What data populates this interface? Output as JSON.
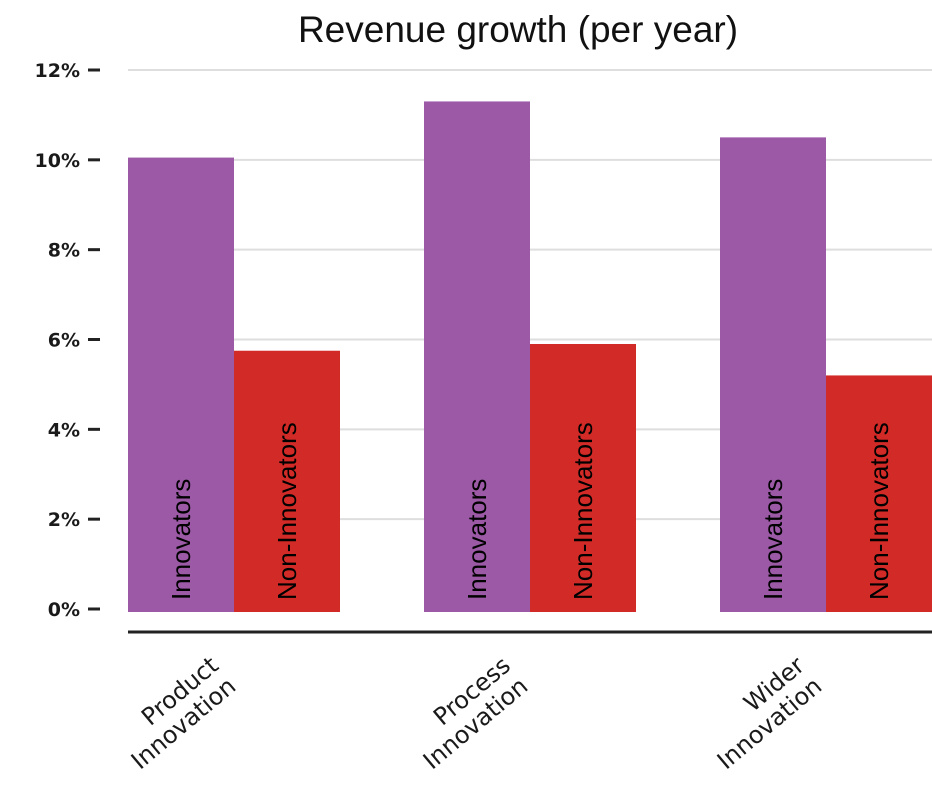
{
  "chart_data": {
    "type": "bar",
    "title": "Revenue growth (per year)",
    "xlabel": "",
    "ylabel": "",
    "categories": [
      [
        "Product",
        "Innovation"
      ],
      [
        "Process",
        "Innovation"
      ],
      [
        "Wider",
        "Innovation"
      ]
    ],
    "series": [
      {
        "name": "Innovators",
        "color": "#9b59a6",
        "values": [
          10.05,
          11.3,
          10.5
        ]
      },
      {
        "name": "Non-Innovators",
        "color": "#d22b27",
        "values": [
          5.75,
          5.9,
          5.2
        ]
      }
    ],
    "ylim": [
      0,
      12
    ],
    "yticks": [
      "0%",
      "2%",
      "4%",
      "6%",
      "8%",
      "10%",
      "12%"
    ],
    "grid": true,
    "legend": "labels inside bars"
  }
}
